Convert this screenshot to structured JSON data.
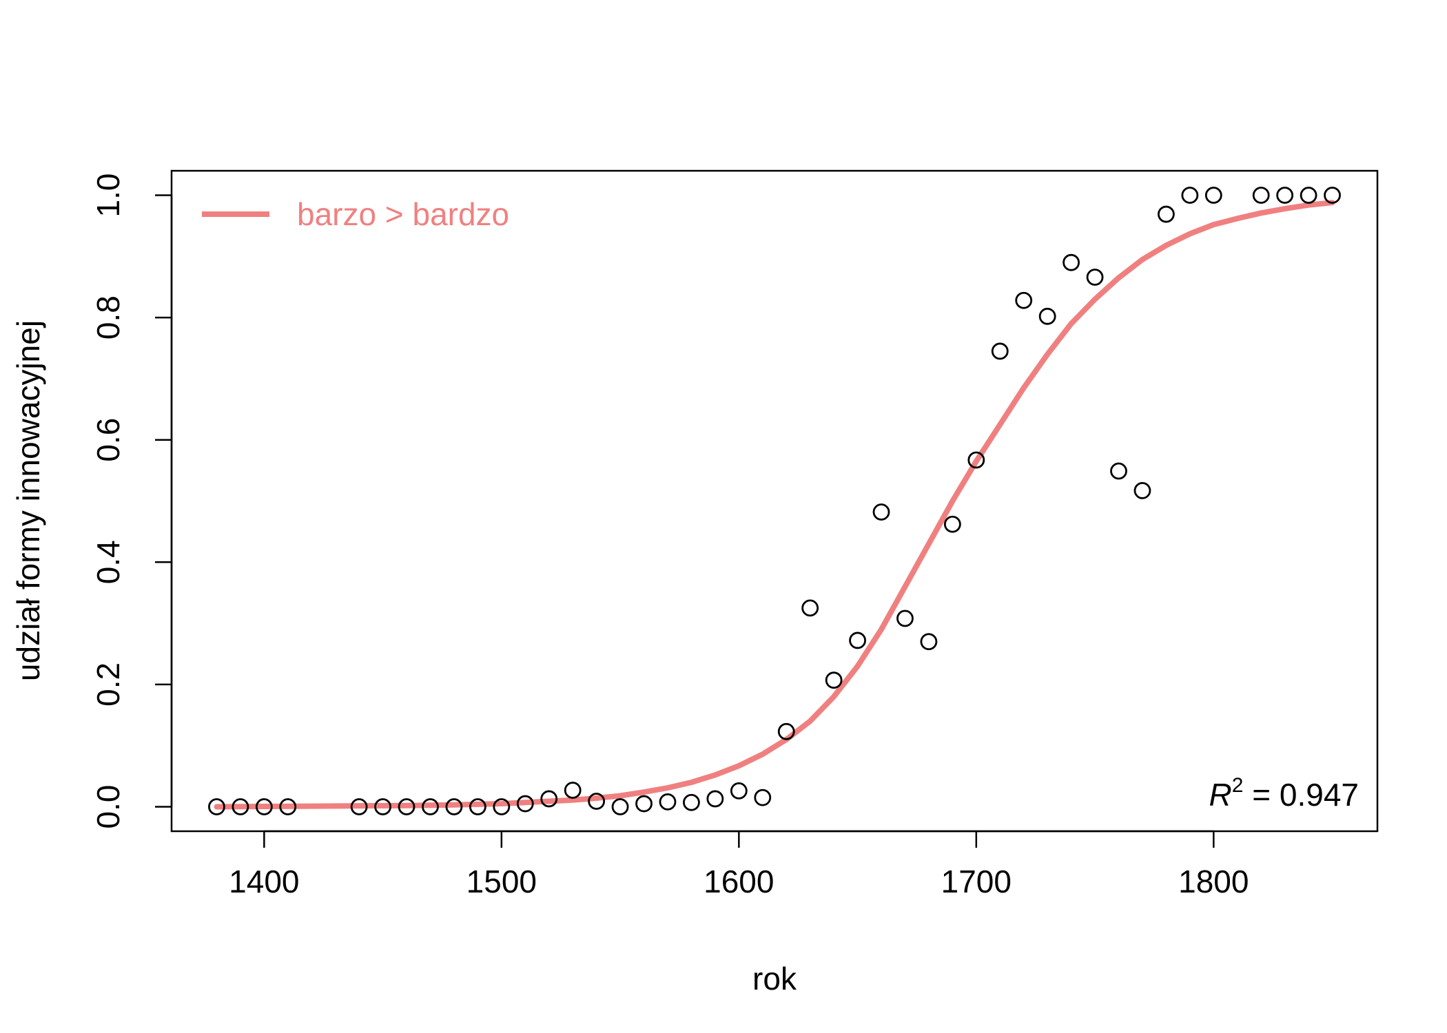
{
  "chart_data": {
    "type": "scatter",
    "xlabel": "rok",
    "ylabel": "udział formy innowacyjnej",
    "xlim": [
      1361,
      1869
    ],
    "ylim": [
      -0.04,
      1.04
    ],
    "x_ticks": [
      1400,
      1500,
      1600,
      1700,
      1800
    ],
    "x_tick_labels": [
      "1400",
      "1500",
      "1600",
      "1700",
      "1800"
    ],
    "y_ticks": [
      0,
      0.2,
      0.4,
      0.6,
      0.8,
      1.0
    ],
    "y_tick_labels": [
      "0.0",
      "0.2",
      "0.4",
      "0.6",
      "0.8",
      "1.0"
    ],
    "grid": false,
    "legend_position": "top-left",
    "series": [
      {
        "name": "barzo > bardzo",
        "kind": "points",
        "marker": "open-circle",
        "color": "#000000",
        "x": [
          1380,
          1390,
          1400,
          1410,
          1440,
          1450,
          1460,
          1470,
          1480,
          1490,
          1500,
          1510,
          1520,
          1530,
          1540,
          1550,
          1560,
          1570,
          1580,
          1590,
          1600,
          1610,
          1620,
          1630,
          1640,
          1650,
          1660,
          1670,
          1680,
          1690,
          1700,
          1710,
          1720,
          1730,
          1740,
          1750,
          1760,
          1770,
          1780,
          1790,
          1800,
          1820,
          1830,
          1840,
          1850
        ],
        "y": [
          0,
          0,
          0,
          0,
          0,
          0,
          0,
          0,
          0,
          0,
          0,
          0.005,
          0.013,
          0.027,
          0.009,
          0,
          0.005,
          0.008,
          0.007,
          0.013,
          0.026,
          0.015,
          0.123,
          0.325,
          0.207,
          0.272,
          0.482,
          0.308,
          0.27,
          0.462,
          0.567,
          0.745,
          0.828,
          0.802,
          0.89,
          0.866,
          0.549,
          0.517,
          0.969,
          1.0,
          1.0,
          1.0,
          1.0,
          1.0,
          1.0
        ]
      },
      {
        "name": "barzo > bardzo",
        "kind": "fitted-line",
        "color": "#F08080",
        "x": [
          1380,
          1400,
          1420,
          1440,
          1460,
          1480,
          1500,
          1510,
          1520,
          1530,
          1540,
          1550,
          1560,
          1570,
          1580,
          1590,
          1600,
          1610,
          1620,
          1630,
          1640,
          1650,
          1660,
          1670,
          1680,
          1690,
          1700,
          1710,
          1720,
          1730,
          1740,
          1750,
          1760,
          1770,
          1780,
          1790,
          1800,
          1810,
          1820,
          1830,
          1840,
          1850
        ],
        "y": [
          0,
          0.0005,
          0.001,
          0.0015,
          0.002,
          0.003,
          0.005,
          0.007,
          0.009,
          0.011,
          0.014,
          0.018,
          0.024,
          0.031,
          0.04,
          0.052,
          0.067,
          0.086,
          0.11,
          0.14,
          0.18,
          0.23,
          0.29,
          0.36,
          0.43,
          0.5,
          0.565,
          0.625,
          0.685,
          0.74,
          0.79,
          0.83,
          0.865,
          0.895,
          0.918,
          0.937,
          0.952,
          0.962,
          0.971,
          0.978,
          0.984,
          0.988
        ]
      }
    ],
    "legend": {
      "label": "barzo > bardzo",
      "color": "#F08080"
    },
    "annotation": {
      "r2_symbol": "R",
      "r2_exponent": "2",
      "r2_text": " = 0.947"
    }
  }
}
